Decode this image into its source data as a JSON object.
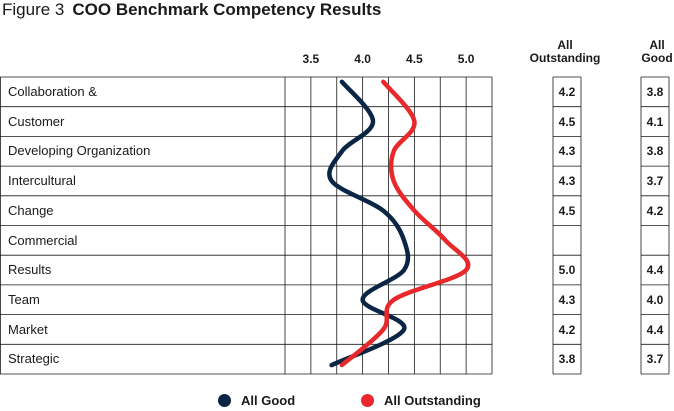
{
  "figure_label": "Figure 3",
  "title": "COO Benchmark Competency Results",
  "columns": {
    "outstanding_header": [
      "All",
      "Outstanding"
    ],
    "good_header": [
      "All",
      "Good"
    ]
  },
  "colors": {
    "good": "#0b2545",
    "outstanding": "#e8282b",
    "grid": "#1a1a1a"
  },
  "chart_data": {
    "type": "line",
    "orientation": "horizontal",
    "categories": [
      "Collaboration &",
      "Customer",
      "Developing Organization",
      "Intercultural",
      "Change",
      "Commercial",
      "Results",
      "Team",
      "Market",
      "Strategic"
    ],
    "x_ticks": [
      3.5,
      4.0,
      4.5,
      5.0
    ],
    "x_tick_labels": [
      "3.5",
      "4.0",
      "4.5",
      "5.0"
    ],
    "xlim": [
      3.25,
      5.25
    ],
    "grid": true,
    "legend_position": "bottom",
    "series": [
      {
        "name": "All Good",
        "color_key": "good",
        "values": [
          3.8,
          4.1,
          3.8,
          3.7,
          4.2,
          4.4,
          4.4,
          4.0,
          4.4,
          3.7
        ]
      },
      {
        "name": "All Outstanding",
        "color_key": "outstanding",
        "values": [
          4.2,
          4.5,
          4.3,
          4.3,
          4.5,
          4.8,
          5.0,
          4.3,
          4.2,
          3.8
        ]
      }
    ],
    "table": {
      "outstanding": [
        "4.2",
        "4.5",
        "4.3",
        "4.3",
        "4.5",
        "",
        "5.0",
        "4.3",
        "4.2",
        "3.8"
      ],
      "good": [
        "3.8",
        "4.1",
        "3.8",
        "3.7",
        "4.2",
        "",
        "4.4",
        "4.0",
        "4.4",
        "3.7"
      ]
    }
  }
}
